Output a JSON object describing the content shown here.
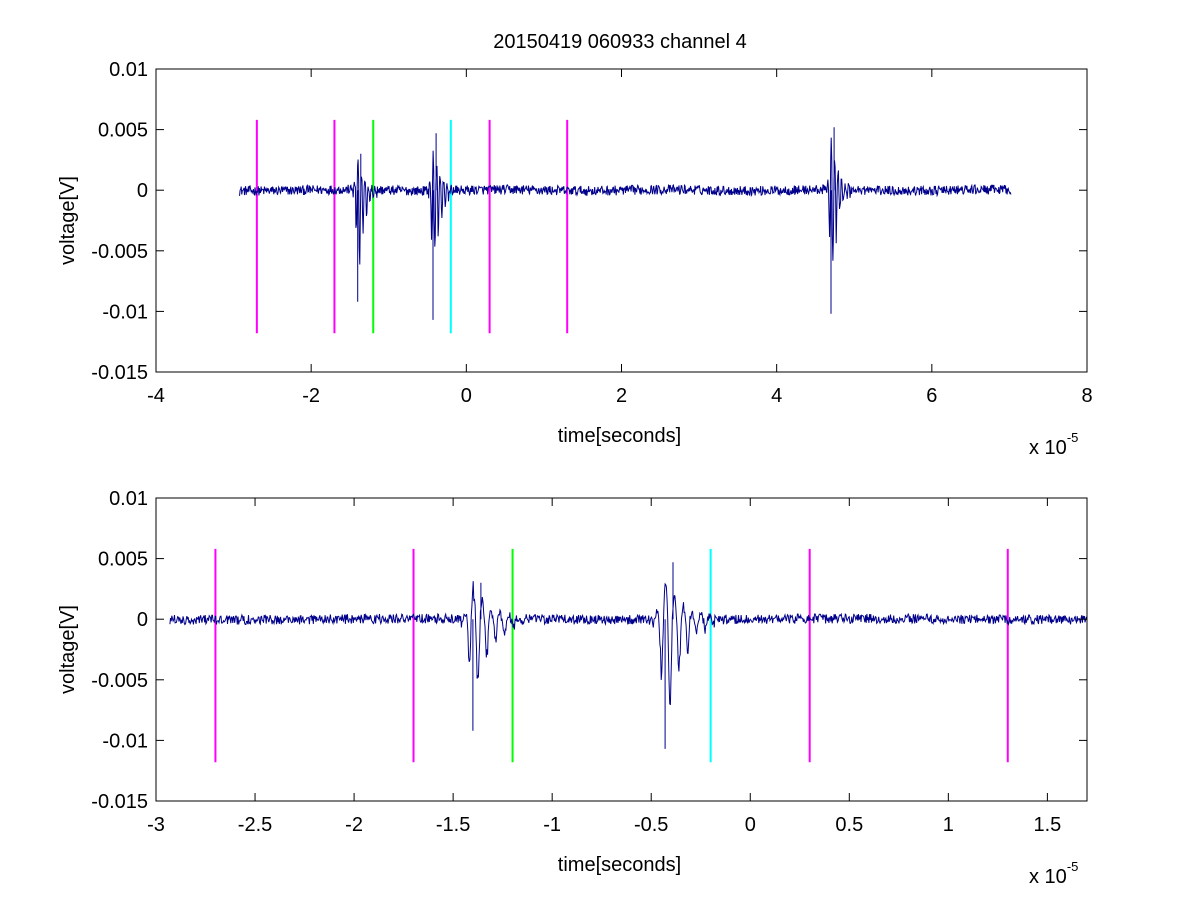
{
  "figure": {
    "title": "20150419 060933 channel 4",
    "colors": {
      "signal": "#00008b",
      "marker_magenta": "#ff00ff",
      "marker_green": "#00ff00",
      "marker_cyan": "#00ffff",
      "axes": "#000000",
      "background": "#ffffff"
    }
  },
  "chart_data": [
    {
      "type": "line",
      "name": "top-panel",
      "title": "20150419 060933 channel 4",
      "xlabel": "time[seconds]",
      "ylabel": "voltage[V]",
      "x_exponent_label": "x 10",
      "x_exponent": "-5",
      "xlim": [
        -4,
        8
      ],
      "ylim": [
        -0.015,
        0.01
      ],
      "xticks": [
        -4,
        -2,
        0,
        2,
        4,
        6,
        8
      ],
      "xtick_labels": [
        "-4",
        "-2",
        "0",
        "2",
        "4",
        "6",
        "8"
      ],
      "yticks": [
        0.01,
        0.005,
        0,
        -0.005,
        -0.01,
        -0.015
      ],
      "ytick_labels": [
        "0.01",
        "0.005",
        "0",
        "-0.005",
        "-0.01",
        "-0.015"
      ],
      "grid": false,
      "signal_range": [
        -2.93,
        7.02
      ],
      "signal_noise": 0.0004,
      "bursts": [
        {
          "t": -1.4,
          "min": -0.0092,
          "max": 0.003
        },
        {
          "t": -0.43,
          "min": -0.0107,
          "max": 0.0047
        },
        {
          "t": 4.7,
          "min": -0.0102,
          "max": 0.0052
        }
      ],
      "markers": [
        {
          "x": -2.7,
          "color": "magenta",
          "ymin": -0.0118,
          "ymax": 0.0058
        },
        {
          "x": -1.7,
          "color": "magenta",
          "ymin": -0.0118,
          "ymax": 0.0058
        },
        {
          "x": -1.2,
          "color": "green",
          "ymin": -0.0118,
          "ymax": 0.0058
        },
        {
          "x": -0.2,
          "color": "cyan",
          "ymin": -0.0118,
          "ymax": 0.0058
        },
        {
          "x": 0.3,
          "color": "magenta",
          "ymin": -0.0118,
          "ymax": 0.0058
        },
        {
          "x": 1.3,
          "color": "magenta",
          "ymin": -0.0118,
          "ymax": 0.0058
        }
      ]
    },
    {
      "type": "line",
      "name": "bottom-panel",
      "title": "",
      "xlabel": "time[seconds]",
      "ylabel": "voltage[V]",
      "x_exponent_label": "x 10",
      "x_exponent": "-5",
      "xlim": [
        -3.0,
        1.7
      ],
      "ylim": [
        -0.015,
        0.01
      ],
      "xticks": [
        -3,
        -2.5,
        -2,
        -1.5,
        -1,
        -0.5,
        0,
        0.5,
        1,
        1.5
      ],
      "xtick_labels": [
        "-3",
        "-2.5",
        "-2",
        "-1.5",
        "-1",
        "-0.5",
        "0",
        "0.5",
        "1",
        "1.5"
      ],
      "yticks": [
        0.01,
        0.005,
        0,
        -0.005,
        -0.01,
        -0.015
      ],
      "ytick_labels": [
        "0.01",
        "0.005",
        "0",
        "-0.005",
        "-0.01",
        "-0.015"
      ],
      "grid": false,
      "signal_range": [
        -2.93,
        1.7
      ],
      "signal_noise": 0.0004,
      "bursts": [
        {
          "t": -1.4,
          "min": -0.0092,
          "max": 0.003
        },
        {
          "t": -0.43,
          "min": -0.0107,
          "max": 0.0047
        }
      ],
      "markers": [
        {
          "x": -2.7,
          "color": "magenta",
          "ymin": -0.0118,
          "ymax": 0.0058
        },
        {
          "x": -1.7,
          "color": "magenta",
          "ymin": -0.0118,
          "ymax": 0.0058
        },
        {
          "x": -1.2,
          "color": "green",
          "ymin": -0.0118,
          "ymax": 0.0058
        },
        {
          "x": -0.2,
          "color": "cyan",
          "ymin": -0.0118,
          "ymax": 0.0058
        },
        {
          "x": 0.3,
          "color": "magenta",
          "ymin": -0.0118,
          "ymax": 0.0058
        },
        {
          "x": 1.3,
          "color": "magenta",
          "ymin": -0.0118,
          "ymax": 0.0058
        }
      ]
    }
  ]
}
